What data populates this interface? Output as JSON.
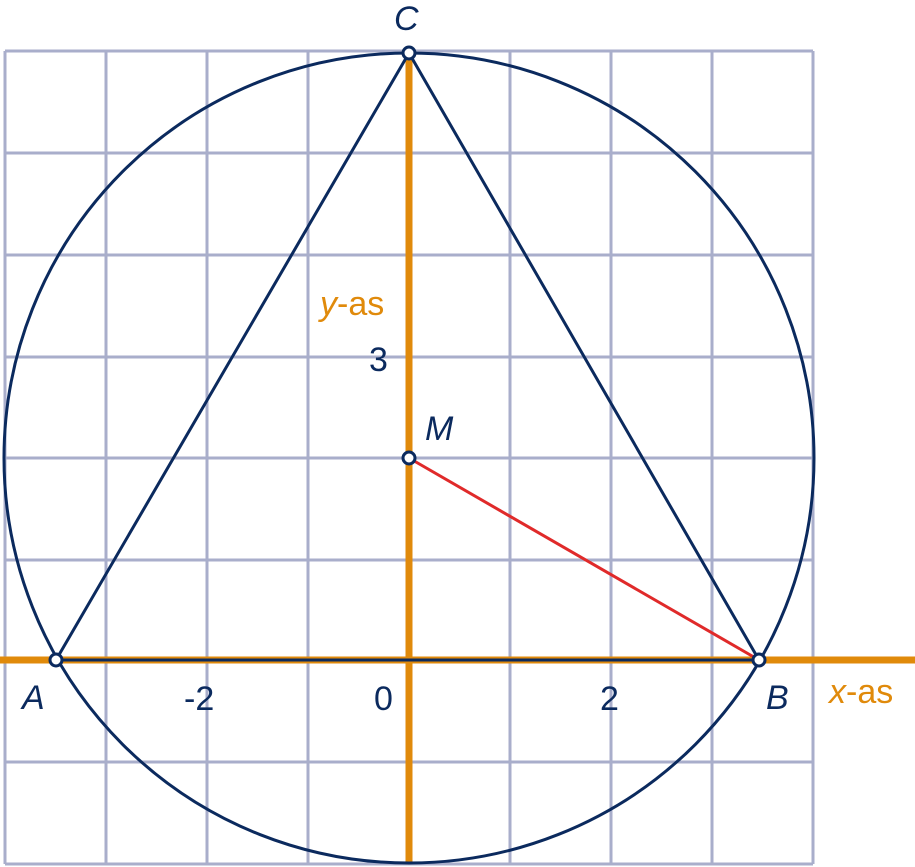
{
  "colors": {
    "grid": "#a9aecb",
    "axis": "#e08a0b",
    "shape": "#0b2a5e",
    "radius": "#e02a2a",
    "point_fill": "#ffffff"
  },
  "axes": {
    "x_label_var": "x",
    "x_label_suffix": "-as",
    "y_label_var": "y",
    "y_label_suffix": "-as"
  },
  "ticks": {
    "x_neg2": "-2",
    "x_zero": "0",
    "x_pos2": "2",
    "y_3": "3"
  },
  "points": {
    "A": "A",
    "B": "B",
    "C": "C",
    "M": "M"
  }
}
